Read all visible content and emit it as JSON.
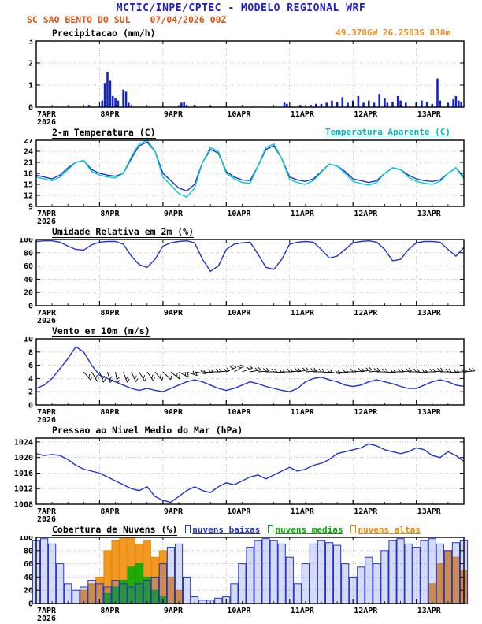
{
  "header": {
    "title": "MCTIC/INPE/CPTEC - MODELO REGIONAL WRF",
    "title_color": "#2121bf",
    "station": "SC SAO BENTO DO SUL",
    "run": "07/04/2026 00Z",
    "station_color": "#e0540e"
  },
  "x_axis": {
    "hours_max": 162,
    "step_hours": 3,
    "day_ticks": [
      {
        "h": 0,
        "label": "7APR",
        "sub": "2026"
      },
      {
        "h": 24,
        "label": "8APR"
      },
      {
        "h": 48,
        "label": "9APR"
      },
      {
        "h": 72,
        "label": "10APR"
      },
      {
        "h": 96,
        "label": "11APR"
      },
      {
        "h": 120,
        "label": "12APR"
      },
      {
        "h": 144,
        "label": "13APR"
      }
    ]
  },
  "chart_data": [
    {
      "id": "precipitation",
      "type": "bar",
      "title": "Precipitacao (mm/h)",
      "right_label": {
        "text": "49.3786W 26.2503S 838m",
        "color": "#ef8b1d",
        "underline": false
      },
      "ylim": [
        0,
        3
      ],
      "yticks": [
        0,
        1,
        2,
        3
      ],
      "bar_color": "#1122cc",
      "points": [
        [
          20,
          0.1
        ],
        [
          25,
          0.3
        ],
        [
          26,
          1.1
        ],
        [
          27,
          1.6
        ],
        [
          28,
          1.2
        ],
        [
          29,
          0.5
        ],
        [
          30,
          0.4
        ],
        [
          31,
          0.3
        ],
        [
          33,
          0.8
        ],
        [
          34,
          0.7
        ],
        [
          35,
          0.2
        ],
        [
          55,
          0.2
        ],
        [
          56,
          0.25
        ],
        [
          57,
          0.1
        ],
        [
          60,
          0.1
        ],
        [
          66,
          0.05
        ],
        [
          94,
          0.2
        ],
        [
          95,
          0.15
        ],
        [
          100,
          0.1
        ],
        [
          104,
          0.1
        ],
        [
          106,
          0.15
        ],
        [
          108,
          0.15
        ],
        [
          110,
          0.2
        ],
        [
          112,
          0.3
        ],
        [
          114,
          0.25
        ],
        [
          116,
          0.45
        ],
        [
          118,
          0.2
        ],
        [
          120,
          0.3
        ],
        [
          122,
          0.5
        ],
        [
          124,
          0.2
        ],
        [
          126,
          0.3
        ],
        [
          128,
          0.2
        ],
        [
          130,
          0.6
        ],
        [
          132,
          0.4
        ],
        [
          133,
          0.2
        ],
        [
          135,
          0.25
        ],
        [
          137,
          0.5
        ],
        [
          138,
          0.3
        ],
        [
          140,
          0.2
        ],
        [
          144,
          0.2
        ],
        [
          146,
          0.3
        ],
        [
          148,
          0.25
        ],
        [
          150,
          0.15
        ],
        [
          152,
          1.3
        ],
        [
          153,
          0.3
        ],
        [
          156,
          0.2
        ],
        [
          158,
          0.35
        ],
        [
          159,
          0.5
        ],
        [
          160,
          0.3
        ],
        [
          161,
          0.25
        ]
      ]
    },
    {
      "id": "temperature",
      "type": "line",
      "title": "2-m Temperatura (C)",
      "right_label": {
        "text": "Temperatura Aparente (C)",
        "color": "#00b8b8",
        "underline": true
      },
      "ylim": [
        9,
        27
      ],
      "yticks": [
        9,
        12,
        15,
        18,
        21,
        24,
        27
      ],
      "series": [
        {
          "name": "2-m Temperatura",
          "color": "#2233cc",
          "values": [
            17.5,
            17,
            16.5,
            17.5,
            19.5,
            21,
            21.5,
            19,
            18,
            17.5,
            17.2,
            18,
            22,
            25.5,
            26.5,
            24,
            18,
            16,
            14,
            13.2,
            15,
            21,
            24.5,
            23.5,
            18.5,
            17,
            16.2,
            16,
            20,
            24.5,
            25.5,
            22,
            17,
            16.2,
            15.8,
            16.5,
            18.5,
            20.5,
            20,
            18.5,
            16.5,
            16,
            15.5,
            16,
            18,
            19.5,
            19,
            17.5,
            16.5,
            16,
            15.8,
            16.2,
            18,
            19.5,
            17
          ]
        },
        {
          "name": "Temperatura Aparente",
          "color": "#00cccc",
          "values": [
            17,
            16.5,
            16,
            17,
            19,
            21,
            21.5,
            18.5,
            17.5,
            17,
            16.8,
            18,
            22.5,
            26,
            27,
            24,
            17,
            14.8,
            12.5,
            11.5,
            14,
            21,
            25,
            24,
            18,
            16.5,
            15.5,
            15.3,
            20,
            25,
            26,
            22,
            16.3,
            15.5,
            15,
            16,
            18.3,
            20.5,
            20,
            18,
            15.8,
            15.2,
            14.8,
            15.5,
            18,
            19.5,
            19,
            17,
            15.8,
            15.3,
            15,
            15.8,
            18,
            19.5,
            16.5
          ]
        }
      ]
    },
    {
      "id": "humidity",
      "type": "line",
      "title": "Umidade Relativa em 2m (%)",
      "ylim": [
        0,
        100
      ],
      "yticks": [
        0,
        20,
        40,
        60,
        80,
        100
      ],
      "series": [
        {
          "name": "Umidade Relativa",
          "color": "#2233cc",
          "values": [
            97,
            98,
            98,
            96,
            90,
            85,
            84,
            92,
            96,
            97,
            97,
            93,
            75,
            62,
            58,
            70,
            90,
            95,
            97,
            98,
            95,
            70,
            52,
            60,
            85,
            93,
            95,
            96,
            78,
            58,
            55,
            70,
            93,
            96,
            97,
            96,
            85,
            72,
            75,
            85,
            95,
            97,
            98,
            96,
            85,
            68,
            70,
            85,
            95,
            97,
            97,
            96,
            85,
            75,
            88
          ]
        }
      ]
    },
    {
      "id": "wind",
      "type": "line",
      "title": "Vento em 10m (m/s)",
      "ylim": [
        0,
        10
      ],
      "yticks": [
        0,
        2,
        4,
        6,
        8,
        10
      ],
      "series": [
        {
          "name": "Vento em 10m",
          "color": "#2233cc",
          "values": [
            2.5,
            3,
            4,
            5.5,
            7,
            8.8,
            8,
            6,
            4.5,
            4,
            3.5,
            3,
            2.5,
            2.2,
            2.5,
            2.2,
            2,
            2.5,
            3,
            3.5,
            3.8,
            3.5,
            3,
            2.5,
            2.2,
            2.5,
            3,
            3.5,
            3.2,
            2.8,
            2.5,
            2.2,
            2,
            2.5,
            3.5,
            4,
            4.2,
            3.8,
            3.5,
            3,
            2.8,
            3,
            3.5,
            3.8,
            3.5,
            3.2,
            2.8,
            2.5,
            2.5,
            3,
            3.5,
            3.8,
            3.5,
            3,
            2.8
          ]
        }
      ],
      "barbs": {
        "color": "#000000",
        "speed_level": 5,
        "items": [
          [
            18,
            -50
          ],
          [
            21,
            -60
          ],
          [
            24,
            -70
          ],
          [
            27,
            -75
          ],
          [
            30,
            -80
          ],
          [
            33,
            -70
          ],
          [
            36,
            -65
          ],
          [
            39,
            -60
          ],
          [
            42,
            -55
          ],
          [
            45,
            -50
          ],
          [
            48,
            -45
          ],
          [
            51,
            -40
          ],
          [
            54,
            -30
          ],
          [
            57,
            -20
          ],
          [
            60,
            -10
          ],
          [
            63,
            -5
          ],
          [
            66,
            0
          ],
          [
            69,
            5
          ],
          [
            72,
            25
          ],
          [
            75,
            30
          ],
          [
            78,
            20
          ],
          [
            81,
            10
          ],
          [
            84,
            5
          ],
          [
            87,
            0
          ],
          [
            90,
            -5
          ],
          [
            93,
            0
          ],
          [
            96,
            5
          ],
          [
            99,
            10
          ],
          [
            102,
            5
          ],
          [
            105,
            0
          ],
          [
            108,
            -5
          ],
          [
            111,
            -10
          ],
          [
            114,
            -5
          ],
          [
            117,
            0
          ],
          [
            120,
            5
          ],
          [
            123,
            10
          ],
          [
            126,
            5
          ],
          [
            129,
            0
          ],
          [
            132,
            -5
          ],
          [
            135,
            0
          ],
          [
            138,
            5
          ],
          [
            141,
            0
          ],
          [
            144,
            -5
          ],
          [
            147,
            0
          ],
          [
            150,
            5
          ],
          [
            153,
            0
          ],
          [
            156,
            -5
          ],
          [
            159,
            0
          ],
          [
            162,
            5
          ]
        ]
      }
    },
    {
      "id": "pressure",
      "type": "line",
      "title": "Pressao ao Nivel Medio do Mar (hPa)",
      "ylim": [
        1008,
        1025
      ],
      "yticks": [
        1008,
        1012,
        1016,
        1020,
        1024
      ],
      "series": [
        {
          "name": "Pressao",
          "color": "#2233cc",
          "values": [
            1021,
            1020.5,
            1020.8,
            1020.5,
            1019.5,
            1018,
            1017,
            1016.5,
            1016,
            1015,
            1014,
            1013,
            1012,
            1011.5,
            1012.5,
            1010,
            1009,
            1008.5,
            1010,
            1011.5,
            1012.5,
            1011.5,
            1011,
            1012.5,
            1013.5,
            1013,
            1014,
            1015,
            1015.5,
            1014.5,
            1015.5,
            1016.5,
            1017.5,
            1016.5,
            1017,
            1018,
            1018.5,
            1019.5,
            1021,
            1021.5,
            1022,
            1022.5,
            1023.5,
            1023,
            1022,
            1021.5,
            1021,
            1021.5,
            1022.5,
            1022,
            1020.5,
            1020,
            1021.5,
            1020.5,
            1019
          ]
        }
      ]
    },
    {
      "id": "clouds",
      "type": "bar",
      "title": "Cobertura de Nuvens (%)",
      "ylim": [
        0,
        100
      ],
      "yticks": [
        0,
        20,
        40,
        60,
        80,
        100
      ],
      "legend": [
        {
          "label": "nuvens baixas",
          "color": "#2233cc"
        },
        {
          "label": "nuvens medias",
          "color": "#00aa00"
        },
        {
          "label": "nuvens altas",
          "color": "#ee8800"
        }
      ],
      "series": [
        {
          "name": "nuvens altas",
          "color": "#ee8800",
          "values": [
            0,
            0,
            0,
            0,
            0,
            0,
            20,
            30,
            40,
            80,
            95,
            100,
            100,
            90,
            95,
            70,
            80,
            40,
            20,
            0,
            0,
            0,
            0,
            0,
            0,
            0,
            0,
            0,
            0,
            0,
            0,
            0,
            0,
            0,
            0,
            0,
            0,
            0,
            0,
            0,
            0,
            0,
            0,
            0,
            0,
            0,
            0,
            0,
            0,
            0,
            30,
            60,
            80,
            70,
            50
          ]
        },
        {
          "name": "nuvens medias",
          "color": "#00aa00",
          "values": [
            0,
            0,
            0,
            0,
            0,
            0,
            0,
            0,
            0,
            15,
            25,
            35,
            55,
            60,
            40,
            20,
            10,
            0,
            0,
            0,
            0,
            0,
            0,
            0,
            0,
            0,
            0,
            0,
            0,
            0,
            0,
            0,
            0,
            0,
            0,
            0,
            0,
            0,
            0,
            0,
            0,
            0,
            0,
            0,
            0,
            0,
            0,
            0,
            0,
            0,
            0,
            0,
            0,
            0,
            0
          ]
        },
        {
          "name": "nuvens baixas",
          "color": "#2233cc",
          "values": [
            95,
            98,
            90,
            60,
            30,
            20,
            25,
            35,
            30,
            25,
            35,
            30,
            25,
            30,
            35,
            40,
            60,
            85,
            90,
            40,
            10,
            5,
            5,
            8,
            10,
            30,
            60,
            85,
            95,
            98,
            95,
            90,
            70,
            30,
            60,
            90,
            95,
            92,
            88,
            60,
            40,
            55,
            70,
            60,
            80,
            95,
            98,
            90,
            85,
            95,
            98,
            90,
            80,
            92,
            95
          ]
        }
      ]
    }
  ]
}
